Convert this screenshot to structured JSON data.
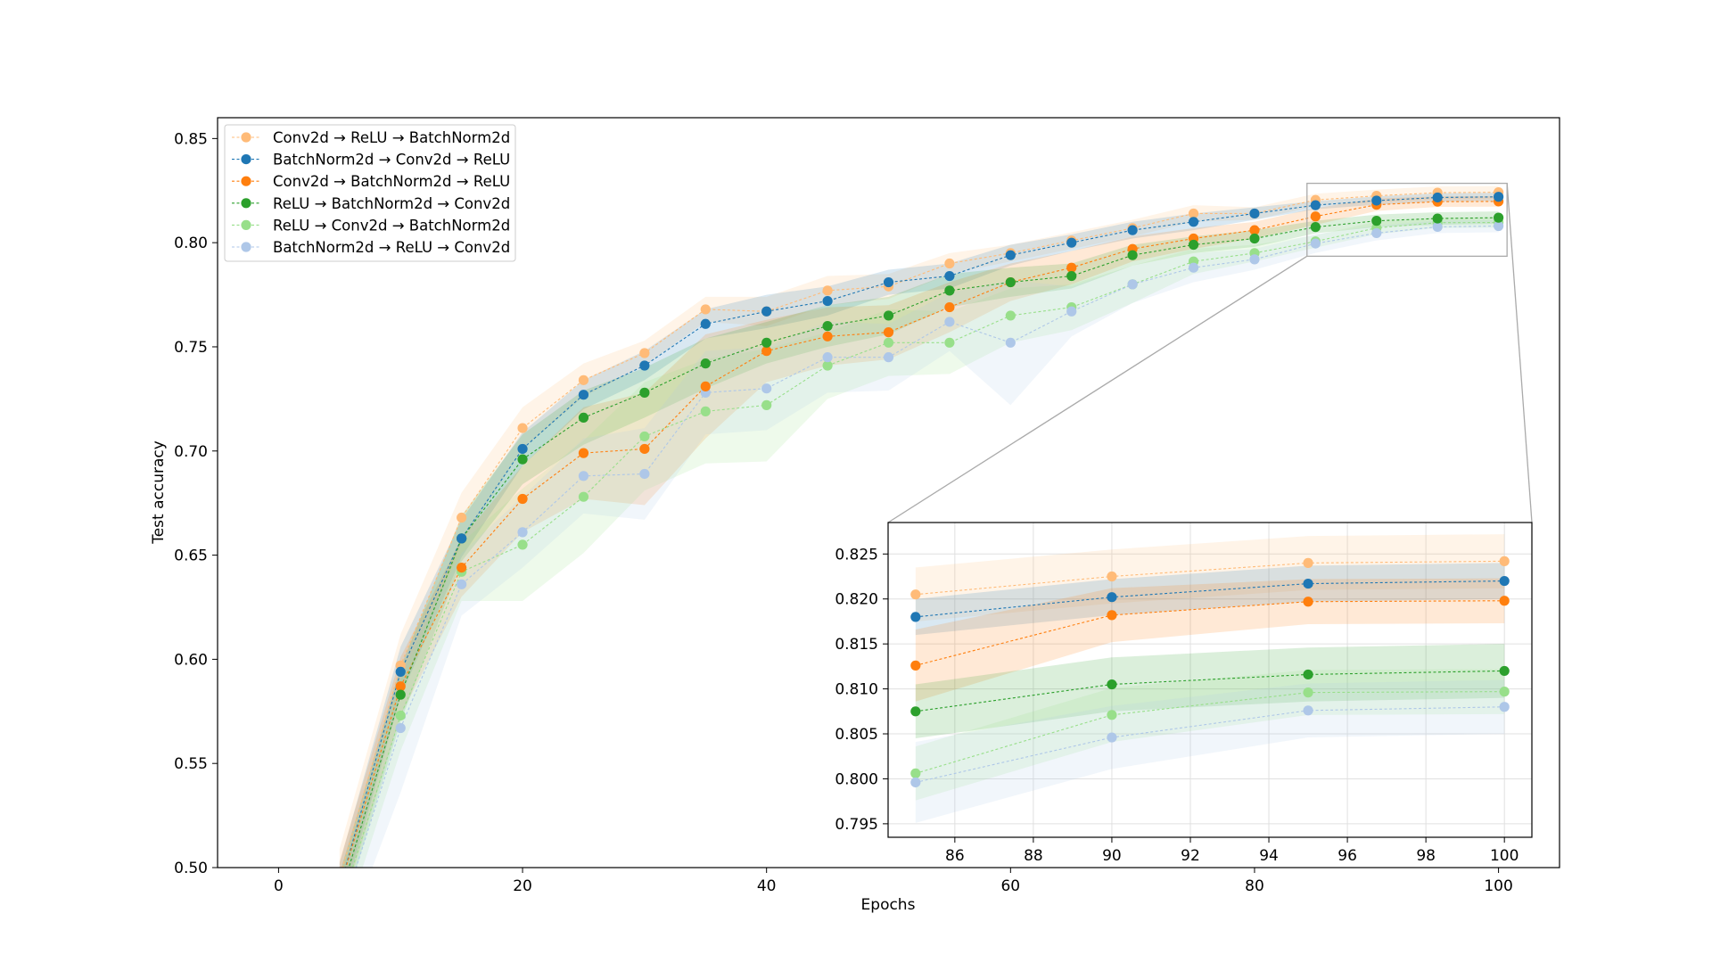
{
  "chart_data": {
    "type": "line",
    "xlabel": "Epochs",
    "ylabel": "Test accuracy",
    "xlim": [
      -5,
      105
    ],
    "ylim": [
      0.5,
      0.86
    ],
    "x_ticks": [
      "0",
      "20",
      "40",
      "60",
      "80",
      "100"
    ],
    "y_ticks": [
      "0.50",
      "0.55",
      "0.60",
      "0.65",
      "0.70",
      "0.75",
      "0.80",
      "0.85"
    ],
    "legend_position": "top-left",
    "x": [
      5,
      10,
      15,
      20,
      25,
      30,
      35,
      40,
      45,
      50,
      55,
      60,
      65,
      70,
      75,
      80,
      85,
      90,
      95,
      100
    ],
    "series": [
      {
        "name": "Conv2d → ReLU → BatchNorm2d",
        "color": "#ffbb78",
        "values": [
          0.495,
          0.597,
          0.668,
          0.711,
          0.734,
          0.747,
          0.768,
          0.767,
          0.777,
          0.779,
          0.79,
          0.795,
          0.801,
          0.807,
          0.814,
          0.814,
          0.8205,
          0.8225,
          0.824,
          0.8242
        ],
        "band": [
          0.014,
          0.015,
          0.012,
          0.01,
          0.008,
          0.006,
          0.006,
          0.007,
          0.007,
          0.006,
          0.005,
          0.004,
          0.004,
          0.004,
          0.004,
          0.003,
          0.003,
          0.003,
          0.003,
          0.003
        ]
      },
      {
        "name": "BatchNorm2d → Conv2d → ReLU",
        "color": "#1f77b4",
        "values": [
          0.49,
          0.594,
          0.658,
          0.701,
          0.727,
          0.741,
          0.761,
          0.767,
          0.772,
          0.781,
          0.784,
          0.794,
          0.8,
          0.806,
          0.81,
          0.814,
          0.818,
          0.8202,
          0.8217,
          0.822
        ],
        "band": [
          0.012,
          0.012,
          0.009,
          0.008,
          0.007,
          0.007,
          0.007,
          0.008,
          0.007,
          0.006,
          0.006,
          0.005,
          0.004,
          0.004,
          0.004,
          0.003,
          0.002,
          0.002,
          0.002,
          0.002
        ]
      },
      {
        "name": "Conv2d → BatchNorm2d → ReLU",
        "color": "#ff7f0e",
        "values": [
          0.49,
          0.587,
          0.644,
          0.677,
          0.699,
          0.701,
          0.731,
          0.748,
          0.755,
          0.757,
          0.769,
          0.781,
          0.788,
          0.797,
          0.802,
          0.806,
          0.8126,
          0.8182,
          0.8197,
          0.8198
        ],
        "band": [
          0.013,
          0.014,
          0.014,
          0.016,
          0.022,
          0.027,
          0.025,
          0.015,
          0.014,
          0.013,
          0.012,
          0.009,
          0.008,
          0.006,
          0.005,
          0.004,
          0.004,
          0.003,
          0.0025,
          0.0025
        ]
      },
      {
        "name": "ReLU → BatchNorm2d → Conv2d",
        "color": "#2ca02c",
        "values": [
          0.485,
          0.583,
          0.658,
          0.696,
          0.716,
          0.728,
          0.742,
          0.752,
          0.76,
          0.765,
          0.777,
          0.781,
          0.784,
          0.794,
          0.799,
          0.802,
          0.8075,
          0.8105,
          0.8116,
          0.812
        ],
        "band": [
          0.012,
          0.013,
          0.011,
          0.012,
          0.013,
          0.012,
          0.012,
          0.01,
          0.01,
          0.009,
          0.008,
          0.007,
          0.006,
          0.005,
          0.004,
          0.004,
          0.003,
          0.003,
          0.003,
          0.003
        ]
      },
      {
        "name": "ReLU → Conv2d → BatchNorm2d",
        "color": "#98df8a",
        "values": [
          0.48,
          0.573,
          0.642,
          0.655,
          0.678,
          0.707,
          0.719,
          0.722,
          0.741,
          0.752,
          0.752,
          0.765,
          0.769,
          0.78,
          0.791,
          0.795,
          0.8006,
          0.8071,
          0.8096,
          0.8097
        ],
        "band": [
          0.014,
          0.017,
          0.014,
          0.027,
          0.027,
          0.026,
          0.025,
          0.027,
          0.016,
          0.016,
          0.015,
          0.013,
          0.011,
          0.009,
          0.006,
          0.004,
          0.003,
          0.003,
          0.0025,
          0.0025
        ]
      },
      {
        "name": "BatchNorm2d → ReLU → Conv2d",
        "color": "#aec7e8",
        "values": [
          0.475,
          0.567,
          0.636,
          0.661,
          0.688,
          0.689,
          0.728,
          0.73,
          0.745,
          0.745,
          0.762,
          0.752,
          0.767,
          0.78,
          0.788,
          0.792,
          0.7996,
          0.8046,
          0.8076,
          0.808
        ],
        "band": [
          0.017,
          0.031,
          0.015,
          0.017,
          0.018,
          0.022,
          0.02,
          0.02,
          0.017,
          0.016,
          0.014,
          0.03,
          0.012,
          0.009,
          0.007,
          0.005,
          0.0045,
          0.0035,
          0.003,
          0.003
        ]
      }
    ],
    "inset": {
      "x_range": [
        85,
        100
      ],
      "xlim": [
        84.3,
        100.7
      ],
      "ylim": [
        0.7935,
        0.8285
      ],
      "display_x": [
        85,
        90,
        95,
        100
      ],
      "x_ticks": [
        "86",
        "88",
        "90",
        "92",
        "94",
        "96",
        "98",
        "100"
      ],
      "y_ticks": [
        "0.795",
        "0.800",
        "0.805",
        "0.810",
        "0.815",
        "0.820",
        "0.825"
      ],
      "grid": true
    }
  }
}
